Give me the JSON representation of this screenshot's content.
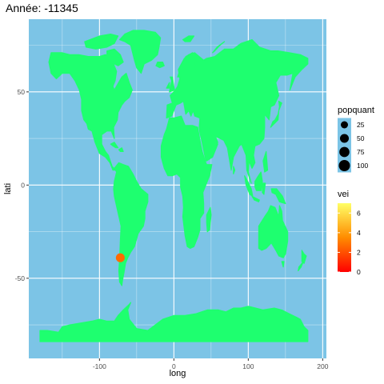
{
  "chart_data": {
    "type": "scatter",
    "title": "Année: -11345",
    "xlabel": "long",
    "ylabel": "lati",
    "xlim": [
      -195,
      205
    ],
    "ylim": [
      -93,
      89
    ],
    "x_ticks": [
      -100,
      0,
      100,
      200
    ],
    "y_ticks": [
      -50,
      0,
      50
    ],
    "grid": true,
    "panel_background": "#7cc4e6",
    "land_color": "#1eff6f",
    "points": [
      {
        "x": -72,
        "y": -39,
        "popquant": 50,
        "vei": 3,
        "color": "#ff6a00"
      }
    ],
    "legend_size": {
      "title": "popquant",
      "entries": [
        {
          "label": "25",
          "value": 25
        },
        {
          "label": "50",
          "value": 50
        },
        {
          "label": "75",
          "value": 75
        },
        {
          "label": "100",
          "value": 100
        }
      ]
    },
    "legend_color": {
      "title": "vei",
      "range": [
        0,
        7
      ],
      "ticks": [
        {
          "label": "6",
          "value": 6
        },
        {
          "label": "4",
          "value": 4
        },
        {
          "label": "2",
          "value": 2
        },
        {
          "label": "0",
          "value": 0
        }
      ],
      "low_color": "#ff0000",
      "mid_color": "#ff8c00",
      "high_color": "#ffff66"
    },
    "legend_position": "right"
  }
}
